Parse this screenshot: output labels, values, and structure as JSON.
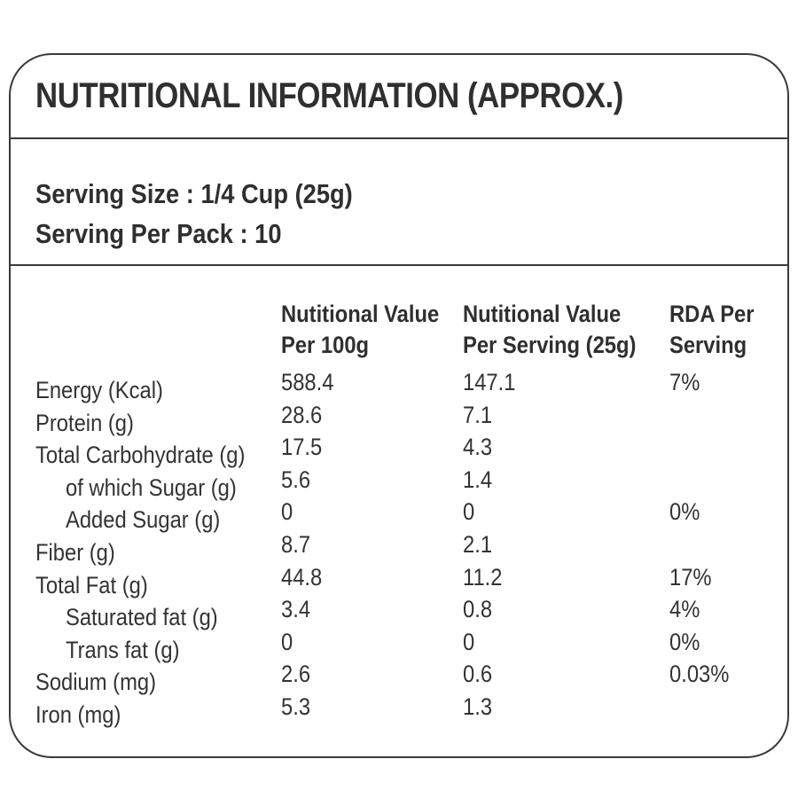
{
  "label": {
    "title": "NUTRITIONAL INFORMATION (APPROX.)",
    "serving": {
      "size_line": "Serving Size : 1/4 Cup (25g)",
      "pack_line": "Serving Per Pack : 10"
    },
    "table": {
      "headers": [
        {
          "line1": "Nutitional Value",
          "line2": "Per 100g"
        },
        {
          "line1": "Nutitional Value",
          "line2": "Per Serving (25g)"
        },
        {
          "line1": "RDA Per",
          "line2": "Serving"
        }
      ],
      "rows": [
        {
          "label": "Energy (Kcal)",
          "indent": false,
          "per_100g": "588.4",
          "per_serving": "147.1",
          "rda": "7%"
        },
        {
          "label": "Protein (g)",
          "indent": false,
          "per_100g": "28.6",
          "per_serving": "7.1",
          "rda": ""
        },
        {
          "label": "Total Carbohydrate (g)",
          "indent": false,
          "per_100g": "17.5",
          "per_serving": "4.3",
          "rda": ""
        },
        {
          "label": "of which Sugar (g)",
          "indent": true,
          "per_100g": "5.6",
          "per_serving": "1.4",
          "rda": ""
        },
        {
          "label": "Added Sugar (g)",
          "indent": true,
          "per_100g": "0",
          "per_serving": "0",
          "rda": "0%"
        },
        {
          "label": "Fiber (g)",
          "indent": false,
          "per_100g": "8.7",
          "per_serving": "2.1",
          "rda": ""
        },
        {
          "label": "Total Fat (g)",
          "indent": false,
          "per_100g": "44.8",
          "per_serving": "11.2",
          "rda": "17%"
        },
        {
          "label": "Saturated fat (g)",
          "indent": true,
          "per_100g": "3.4",
          "per_serving": "0.8",
          "rda": "4%"
        },
        {
          "label": "Trans fat (g)",
          "indent": true,
          "per_100g": "0",
          "per_serving": "0",
          "rda": "0%"
        },
        {
          "label": "Sodium (mg)",
          "indent": false,
          "per_100g": "2.6",
          "per_serving": "0.6",
          "rda": "0.03%"
        },
        {
          "label": "Iron (mg)",
          "indent": false,
          "per_100g": "5.3",
          "per_serving": "1.3",
          "rda": ""
        }
      ]
    }
  }
}
